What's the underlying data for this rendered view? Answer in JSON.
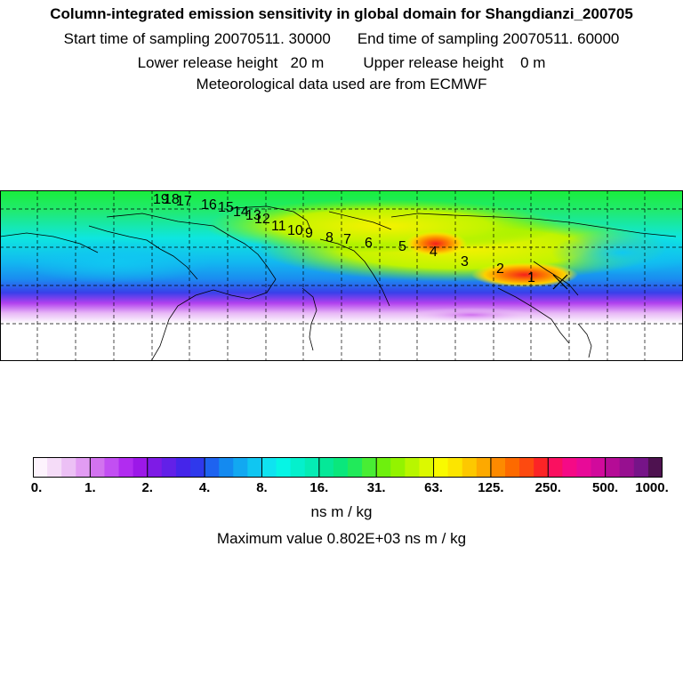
{
  "header": {
    "title": "Column-integrated emission sensitivity in global domain for Shangdianzi_200705",
    "start_label": "Start time of sampling 20070511. 30000",
    "end_label": "End time of sampling 20070511. 60000",
    "lower_label": "Lower release height   20 m",
    "upper_label": "Upper release height    0 m",
    "met_label": "Meteorological data used are from ECMWF"
  },
  "map": {
    "trajectory_points": [
      "1",
      "2",
      "3",
      "4",
      "5",
      "6",
      "7",
      "8",
      "9",
      "10",
      "11",
      "12",
      "13",
      "14",
      "15",
      "16",
      "17",
      "18",
      "19"
    ]
  },
  "colorbar": {
    "ticks": [
      "0.",
      "1.",
      "2.",
      "4.",
      "8.",
      "16.",
      "31.",
      "63.",
      "125.",
      "250.",
      "500.",
      "1000."
    ],
    "colors": [
      "#fdf3fd",
      "#f5dcf8",
      "#ecc0f5",
      "#e29cf3",
      "#d273ef",
      "#c24ff2",
      "#b12cf0",
      "#9c18e8",
      "#7e1be6",
      "#6220e8",
      "#4525ea",
      "#2f39ec",
      "#1e63f0",
      "#148af0",
      "#12a8f1",
      "#10c6f1",
      "#0fe3f0",
      "#06f5e5",
      "#05f0cc",
      "#05ecb4",
      "#05e898",
      "#0ae77c",
      "#21ea5a",
      "#48ed34",
      "#6ef00e",
      "#93f300",
      "#b8f600",
      "#dcf900",
      "#f9fa00",
      "#fce500",
      "#fdc800",
      "#fda900",
      "#fd8a00",
      "#fd6a00",
      "#fd4a10",
      "#fc2426",
      "#fa1060",
      "#f50a86",
      "#e80a98",
      "#d10a9c",
      "#b50c96",
      "#971090",
      "#761488",
      "#4e1250"
    ]
  },
  "units": "ns m / kg",
  "maximum": "Maximum value  0.802E+03 ns m / kg"
}
